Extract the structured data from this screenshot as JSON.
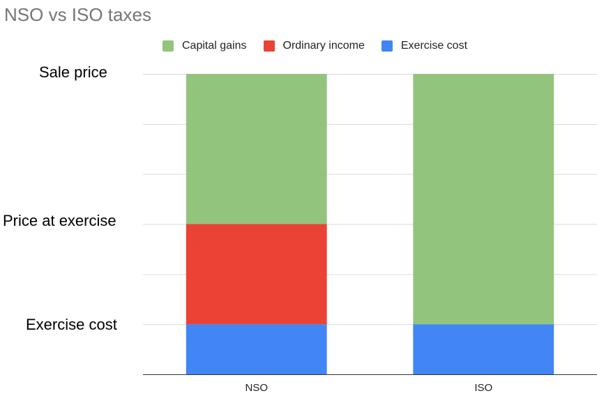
{
  "chart_data": {
    "type": "bar",
    "stacked": true,
    "title": "NSO vs ISO taxes",
    "categories": [
      "NSO",
      "ISO"
    ],
    "series": [
      {
        "name": "Exercise cost",
        "color": "#4285F4",
        "values": [
          1,
          1
        ]
      },
      {
        "name": "Ordinary income",
        "color": "#EA4335",
        "values": [
          2,
          0
        ]
      },
      {
        "name": "Capital gains",
        "color": "#93C47D",
        "values": [
          3,
          5
        ]
      }
    ],
    "legend_order": [
      "Capital gains",
      "Ordinary income",
      "Exercise cost"
    ],
    "legend_position": "top",
    "ylim": [
      0,
      6
    ],
    "gridlines": true,
    "level_labels": [
      {
        "text": "Sale price",
        "value": 6
      },
      {
        "text": "Price at exercise",
        "value": 3
      },
      {
        "text": "Exercise cost",
        "value": 1
      }
    ]
  }
}
